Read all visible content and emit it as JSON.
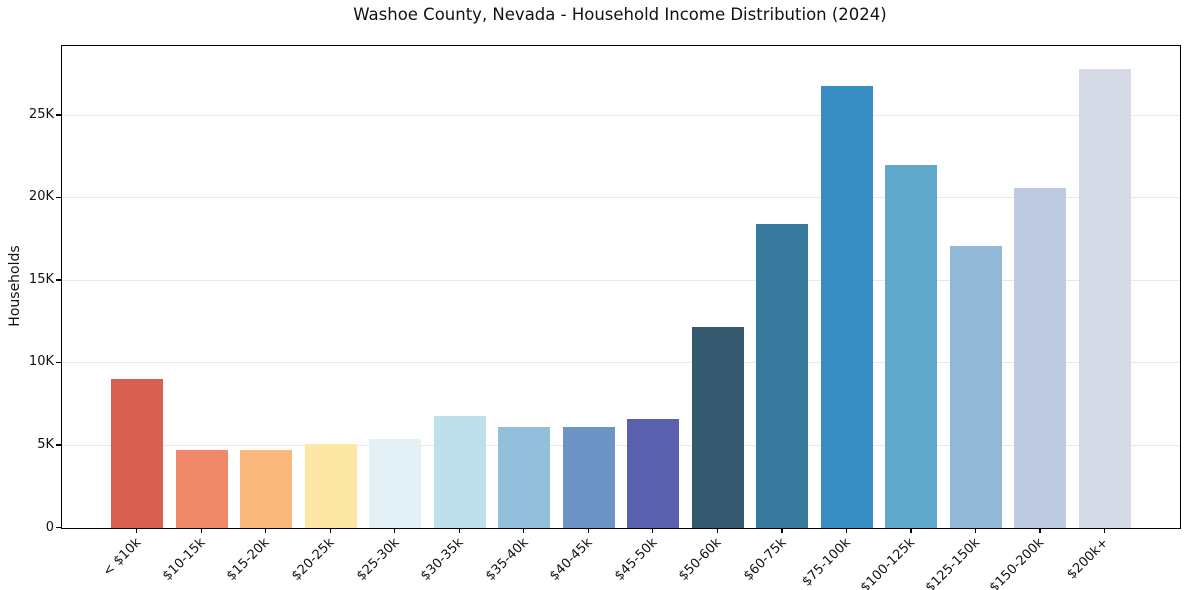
{
  "chart_data": {
    "type": "bar",
    "title": "Washoe County, Nevada - Household Income Distribution (2024)",
    "xlabel": "",
    "ylabel": "Households",
    "categories": [
      "< $10k",
      "$10-15k",
      "$15-20k",
      "$20-25k",
      "$25-30k",
      "$30-35k",
      "$35-40k",
      "$40-45k",
      "$45-50k",
      "$50-60k",
      "$60-75k",
      "$75-100k",
      "$100-125k",
      "$125-150k",
      "$150-200k",
      "$200k+"
    ],
    "values": [
      9000,
      4700,
      4700,
      5100,
      5400,
      6800,
      6100,
      6100,
      6600,
      12200,
      18400,
      26800,
      22000,
      17100,
      20600,
      27800
    ],
    "bar_colors": [
      "#d95f53",
      "#f0896a",
      "#fab87a",
      "#fce8a4",
      "#e3f1f6",
      "#bee0ec",
      "#93bfdb",
      "#6e94c5",
      "#5a5fae",
      "#35596f",
      "#37799d",
      "#388ec2",
      "#5fa7cb",
      "#93b8d6",
      "#becadf",
      "#d6d9e6"
    ],
    "ylim": [
      0,
      29200
    ],
    "yticks": [
      {
        "value": 0,
        "label": "0"
      },
      {
        "value": 5000,
        "label": "5K"
      },
      {
        "value": 10000,
        "label": "10K"
      },
      {
        "value": 15000,
        "label": "15K"
      },
      {
        "value": 20000,
        "label": "20K"
      },
      {
        "value": 25000,
        "label": "25K"
      }
    ],
    "grid": "horizontal",
    "legend_position": "none"
  }
}
